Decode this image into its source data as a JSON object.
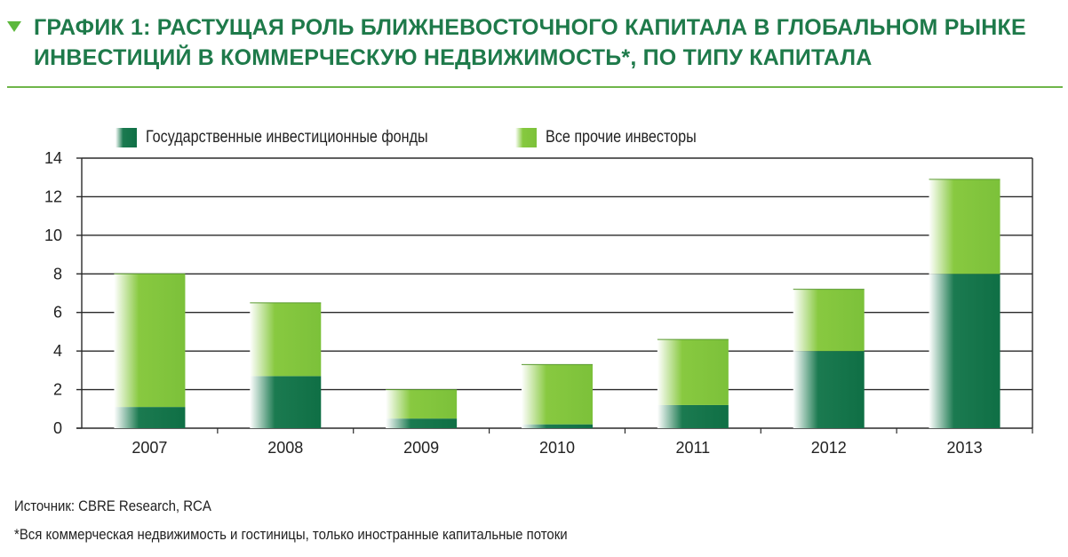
{
  "title": "ГРАФИК 1: РАСТУЩАЯ РОЛЬ БЛИЖНЕВОСТОЧНОГО КАПИТАЛА В ГЛОБАЛЬНОМ РЫНКЕ ИНВЕСТИЦИЙ В КОММЕРЧЕСКУЮ НЕДВИЖИМОСТЬ*, ПО ТИПУ КАПИТАЛА",
  "legend": {
    "series0": "Государственные инвестиционные фонды",
    "series1": "Все прочие инвесторы"
  },
  "source": "Источник: CBRE Research, RCA",
  "footnote": "*Вся коммерческая недвижимость и гостиницы, только иностранные капитальные потоки",
  "colors": {
    "title": "#1e7a4a",
    "sovereign": "#0f6f45",
    "others": "#7cc13a",
    "rule": "#6fb64a"
  },
  "chart_data": {
    "type": "bar",
    "stacked": true,
    "categories": [
      "2007",
      "2008",
      "2009",
      "2010",
      "2011",
      "2012",
      "2013"
    ],
    "series": [
      {
        "name": "Государственные инвестиционные фонды",
        "values": [
          1.1,
          2.7,
          0.5,
          0.2,
          1.2,
          4.0,
          8.0
        ]
      },
      {
        "name": "Все прочие инвесторы",
        "values": [
          6.9,
          3.8,
          1.5,
          3.1,
          3.4,
          3.2,
          4.9
        ]
      }
    ],
    "ylim": [
      0,
      14
    ],
    "yticks": [
      "0",
      "2",
      "4",
      "6",
      "8",
      "10",
      "12",
      "14"
    ],
    "grid": true,
    "legend_position": "top-left"
  }
}
